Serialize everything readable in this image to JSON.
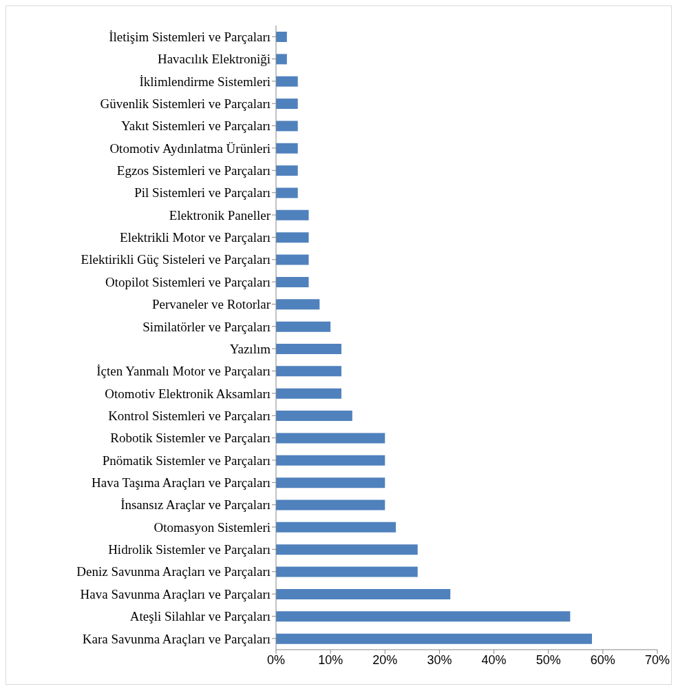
{
  "chart_data": {
    "type": "bar",
    "orientation": "horizontal",
    "categories": [
      "İletişim Sistemleri ve Parçaları",
      "Havacılık Elektroniği",
      "İklimlendirme Sistemleri",
      "Güvenlik Sistemleri ve Parçaları",
      "Yakıt Sistemleri ve Parçaları",
      "Otomotiv Aydınlatma Ürünleri",
      "Egzos Sistemleri ve Parçaları",
      "Pil Sistemleri ve Parçaları",
      "Elektronik Paneller",
      "Elektrikli Motor ve Parçaları",
      "Elektirikli Güç Sisteleri ve Parçaları",
      "Otopilot Sistemleri ve Parçaları",
      "Pervaneler ve Rotorlar",
      "Similatörler ve Parçaları",
      "Yazılım",
      "İçten Yanmalı Motor ve Parçaları",
      "Otomotiv Elektronik Aksamları",
      "Kontrol Sistemleri ve Parçaları",
      "Robotik Sistemler ve Parçaları",
      "Pnömatik Sistemler ve Parçaları",
      "Hava Taşıma Araçları ve Parçaları",
      "İnsansız Araçlar ve Parçaları",
      "Otomasyon Sistemleri",
      "Hidrolik Sistemler ve Parçaları",
      "Deniz Savunma Araçları ve Parçaları",
      "Hava Savunma Araçları ve Parçaları",
      "Ateşli Silahlar ve Parçaları",
      "Kara Savunma Araçları ve Parçaları"
    ],
    "values": [
      2,
      2,
      4,
      4,
      4,
      4,
      4,
      4,
      6,
      6,
      6,
      6,
      8,
      10,
      12,
      12,
      12,
      14,
      20,
      20,
      20,
      20,
      22,
      26,
      26,
      32,
      54,
      58
    ],
    "color": "#4f81bd",
    "xlim": [
      0,
      70
    ],
    "xticks": [
      {
        "value": 0,
        "label": "0%"
      },
      {
        "value": 10,
        "label": "10%"
      },
      {
        "value": 20,
        "label": "20%"
      },
      {
        "value": 30,
        "label": "30%"
      },
      {
        "value": 40,
        "label": "40%"
      },
      {
        "value": 50,
        "label": "50%"
      },
      {
        "value": 60,
        "label": "60%"
      },
      {
        "value": 70,
        "label": "70%"
      }
    ]
  }
}
